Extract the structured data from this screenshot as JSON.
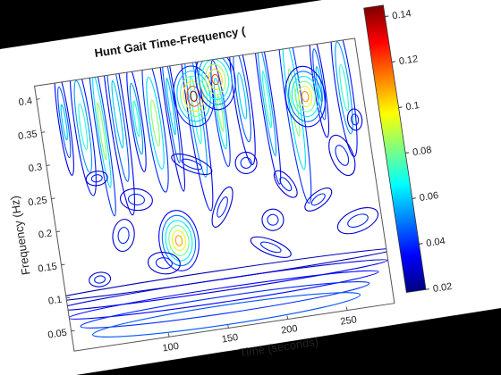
{
  "chart_data": {
    "type": "heatmap",
    "title": "Hunt Gait Time-Frequency (",
    "xlabel": "Time (seconds)",
    "ylabel": "Frequency (Hz)",
    "x_ticks": [
      100,
      150,
      200,
      250
    ],
    "y_ticks": [
      0.05,
      0.1,
      0.15,
      0.2,
      0.25,
      0.3,
      0.35,
      0.4
    ],
    "xlim": [
      20,
      290
    ],
    "ylim": [
      0.02,
      0.42
    ],
    "colorbar": {
      "ticks": [
        0.02,
        0.04,
        0.06,
        0.08,
        0.1,
        0.12,
        0.14
      ],
      "range": [
        0.02,
        0.145
      ],
      "colormap": "jet"
    },
    "contour_style": "unfilled contour lines",
    "hotspots": [
      {
        "time": 150,
        "freq": 0.37,
        "magnitude": 0.14
      },
      {
        "time": 242,
        "freq": 0.345,
        "magnitude": 0.11
      },
      {
        "time": 120,
        "freq": 0.16,
        "magnitude": 0.11
      },
      {
        "time": 170,
        "freq": 0.39,
        "magnitude": 0.12
      }
    ]
  }
}
